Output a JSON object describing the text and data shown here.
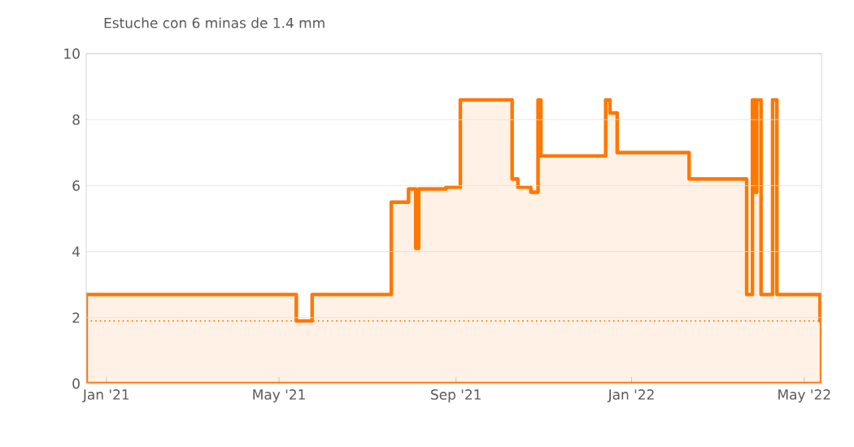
{
  "chart_data": {
    "type": "area",
    "title": "Estuche con 6 minas de 1.4 mm",
    "x": [
      "2020-12-18",
      "2021-05-13",
      "2021-05-24",
      "2021-07-18",
      "2021-07-30",
      "2021-08-04",
      "2021-08-06",
      "2021-08-25",
      "2021-09-04",
      "2021-10-10",
      "2021-10-14",
      "2021-10-23",
      "2021-10-28",
      "2021-10-30",
      "2021-12-14",
      "2021-12-17",
      "2021-12-22",
      "2022-02-10",
      "2022-03-22",
      "2022-03-26",
      "2022-03-28",
      "2022-03-29",
      "2022-04-01",
      "2022-04-09",
      "2022-04-12",
      "2022-05-12",
      "2022-05-13"
    ],
    "series": [
      {
        "color": "#ff7700",
        "values": [
          2.7,
          1.9,
          2.7,
          5.5,
          5.9,
          4.1,
          5.9,
          5.95,
          8.6,
          6.2,
          5.95,
          5.8,
          8.6,
          6.9,
          8.6,
          8.2,
          7.0,
          6.2,
          2.7,
          8.6,
          5.8,
          8.6,
          2.7,
          8.6,
          2.7,
          1.9,
          1.9
        ]
      }
    ],
    "xlim": [
      "2020-12-18",
      "2022-05-13"
    ],
    "xticks": [
      {
        "value": "2021-01-01",
        "label": "Jan '21"
      },
      {
        "value": "2021-05-01",
        "label": "May '21"
      },
      {
        "value": "2021-09-01",
        "label": "Sep '21"
      },
      {
        "value": "2022-01-01",
        "label": "Jan '22"
      },
      {
        "value": "2022-05-01",
        "label": "May '22"
      }
    ],
    "ylim": [
      0,
      10
    ],
    "yticks": [
      0,
      2,
      4,
      6,
      8,
      10
    ],
    "grid": "y",
    "ref_lines": [
      {
        "axis": "y",
        "value": 1.9,
        "color": "#ff7700",
        "line_style": "dotted"
      }
    ]
  }
}
